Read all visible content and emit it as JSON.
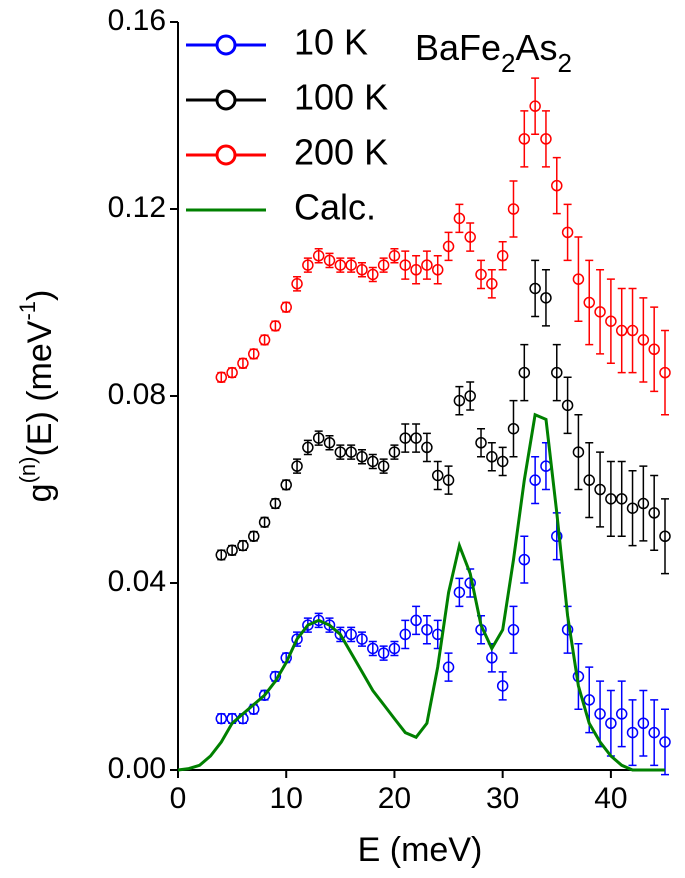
{
  "chart_data": {
    "type": "scatter",
    "xlabel": "E (meV)",
    "ylabel_parts": [
      "g",
      "(n)",
      "(E) (meV",
      "-1",
      ")"
    ],
    "annotation_parts": [
      "BaFe",
      "2",
      "As",
      "2"
    ],
    "xlim": [
      0,
      45
    ],
    "xticks": [
      0,
      10,
      20,
      30,
      40
    ],
    "ylim": [
      0,
      0.16
    ],
    "yticks": [
      {
        "value": 0,
        "label": "0.00"
      },
      0.04,
      0.08,
      0.12,
      0.16
    ],
    "legend": "upper left",
    "series": [
      {
        "name": "10 K",
        "color": "#0000ff",
        "style": "errorbar",
        "x": [
          4,
          5,
          6,
          7,
          8,
          9,
          10,
          11,
          12,
          13,
          14,
          15,
          16,
          17,
          18,
          19,
          20,
          21,
          22,
          23,
          24,
          25,
          26,
          27,
          28,
          29,
          30,
          31,
          32,
          33,
          34,
          35,
          36,
          37,
          38,
          39,
          40,
          41,
          42,
          43,
          44,
          45
        ],
        "values": [
          0.011,
          0.011,
          0.011,
          0.013,
          0.016,
          0.02,
          0.024,
          0.028,
          0.031,
          0.032,
          0.031,
          0.029,
          0.029,
          0.028,
          0.026,
          0.025,
          0.026,
          0.029,
          0.032,
          0.03,
          0.029,
          0.022,
          0.038,
          0.04,
          0.03,
          0.024,
          0.018,
          0.03,
          0.045,
          0.062,
          0.065,
          0.05,
          0.03,
          0.02,
          0.015,
          0.012,
          0.01,
          0.012,
          0.008,
          0.01,
          0.008,
          0.006
        ],
        "errors": [
          0.001,
          0.001,
          0.001,
          0.001,
          0.001,
          0.001,
          0.001,
          0.0015,
          0.0015,
          0.0015,
          0.0015,
          0.0015,
          0.0015,
          0.0015,
          0.0015,
          0.0015,
          0.0015,
          0.003,
          0.003,
          0.003,
          0.003,
          0.003,
          0.003,
          0.003,
          0.003,
          0.003,
          0.003,
          0.005,
          0.005,
          0.005,
          0.005,
          0.005,
          0.005,
          0.007,
          0.007,
          0.007,
          0.007,
          0.007,
          0.007,
          0.007,
          0.007,
          0.007
        ]
      },
      {
        "name": "100 K",
        "color": "#000000",
        "style": "errorbar",
        "x": [
          4,
          5,
          6,
          7,
          8,
          9,
          10,
          11,
          12,
          13,
          14,
          15,
          16,
          17,
          18,
          19,
          20,
          21,
          22,
          23,
          24,
          25,
          26,
          27,
          28,
          29,
          30,
          31,
          32,
          33,
          34,
          35,
          36,
          37,
          38,
          39,
          40,
          41,
          42,
          43,
          44,
          45
        ],
        "values": [
          0.046,
          0.047,
          0.048,
          0.05,
          0.053,
          0.057,
          0.061,
          0.065,
          0.069,
          0.071,
          0.07,
          0.068,
          0.068,
          0.067,
          0.066,
          0.065,
          0.068,
          0.071,
          0.071,
          0.069,
          0.063,
          0.062,
          0.079,
          0.08,
          0.07,
          0.067,
          0.066,
          0.073,
          0.085,
          0.103,
          0.101,
          0.085,
          0.078,
          0.068,
          0.062,
          0.06,
          0.058,
          0.058,
          0.056,
          0.057,
          0.055,
          0.05
        ],
        "errors": [
          0.001,
          0.001,
          0.001,
          0.001,
          0.001,
          0.001,
          0.001,
          0.0015,
          0.0015,
          0.0015,
          0.0015,
          0.0015,
          0.0015,
          0.0015,
          0.0015,
          0.0015,
          0.0015,
          0.003,
          0.003,
          0.003,
          0.003,
          0.003,
          0.003,
          0.003,
          0.003,
          0.003,
          0.003,
          0.006,
          0.006,
          0.006,
          0.006,
          0.006,
          0.006,
          0.008,
          0.008,
          0.008,
          0.008,
          0.008,
          0.008,
          0.008,
          0.008,
          0.008
        ]
      },
      {
        "name": "200 K",
        "color": "#ff0000",
        "style": "errorbar",
        "x": [
          4,
          5,
          6,
          7,
          8,
          9,
          10,
          11,
          12,
          13,
          14,
          15,
          16,
          17,
          18,
          19,
          20,
          21,
          22,
          23,
          24,
          25,
          26,
          27,
          28,
          29,
          30,
          31,
          32,
          33,
          34,
          35,
          36,
          37,
          38,
          39,
          40,
          41,
          42,
          43,
          44,
          45
        ],
        "values": [
          0.084,
          0.085,
          0.087,
          0.089,
          0.092,
          0.095,
          0.099,
          0.104,
          0.108,
          0.11,
          0.109,
          0.108,
          0.108,
          0.107,
          0.106,
          0.108,
          0.11,
          0.108,
          0.107,
          0.108,
          0.107,
          0.112,
          0.118,
          0.114,
          0.106,
          0.104,
          0.11,
          0.12,
          0.135,
          0.142,
          0.135,
          0.125,
          0.115,
          0.105,
          0.1,
          0.098,
          0.096,
          0.094,
          0.094,
          0.092,
          0.09,
          0.085
        ],
        "errors": [
          0.001,
          0.001,
          0.001,
          0.001,
          0.001,
          0.001,
          0.001,
          0.0015,
          0.0015,
          0.0015,
          0.0015,
          0.0015,
          0.0015,
          0.0015,
          0.0015,
          0.0015,
          0.0015,
          0.003,
          0.003,
          0.003,
          0.003,
          0.003,
          0.003,
          0.003,
          0.003,
          0.003,
          0.003,
          0.006,
          0.006,
          0.006,
          0.006,
          0.006,
          0.006,
          0.009,
          0.009,
          0.009,
          0.009,
          0.009,
          0.009,
          0.009,
          0.009,
          0.009
        ]
      },
      {
        "name": "Calc.",
        "color": "#008000",
        "style": "line",
        "x": [
          0,
          1,
          2,
          3,
          4,
          5,
          6,
          7,
          8,
          9,
          10,
          11,
          12,
          13,
          14,
          15,
          16,
          17,
          18,
          19,
          20,
          21,
          22,
          23,
          24,
          25,
          26,
          27,
          28,
          29,
          30,
          31,
          32,
          33,
          34,
          35,
          36,
          37,
          38,
          39,
          40,
          41,
          42,
          43,
          44,
          45
        ],
        "values": [
          0,
          0.0003,
          0.001,
          0.003,
          0.006,
          0.01,
          0.012,
          0.014,
          0.016,
          0.019,
          0.023,
          0.028,
          0.031,
          0.032,
          0.031,
          0.029,
          0.025,
          0.021,
          0.017,
          0.014,
          0.011,
          0.008,
          0.007,
          0.01,
          0.022,
          0.038,
          0.048,
          0.042,
          0.031,
          0.026,
          0.03,
          0.045,
          0.062,
          0.076,
          0.075,
          0.055,
          0.033,
          0.018,
          0.01,
          0.006,
          0.003,
          0.001,
          0,
          0,
          0,
          0
        ]
      }
    ]
  }
}
